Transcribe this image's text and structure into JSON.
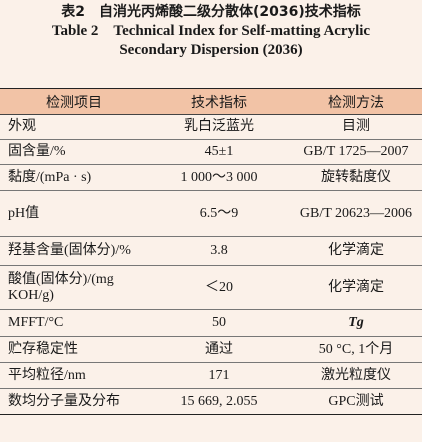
{
  "caption": {
    "cn": "表2　自消光丙烯酸二级分散体(2036)技术指标",
    "en_line1": "Table 2　Technical Index for Self-matting Acrylic",
    "en_line2": "Secondary Dispersion (2036)"
  },
  "table": {
    "headers": [
      "检测项目",
      "技术指标",
      "检测方法"
    ],
    "rows": [
      {
        "item": "外观",
        "spec": "乳白泛蓝光",
        "method": "目测"
      },
      {
        "item": "固含量/%",
        "spec": "45±1",
        "method": "GB/T 1725—2007"
      },
      {
        "item": "黏度/(mPa · s)",
        "spec": "1 000～3 000",
        "method": "旋转黏度仪"
      },
      {
        "item": "pH值",
        "spec": "6.5～9",
        "method": "GB/T 20623—2006"
      },
      {
        "item": "羟基含量(固体分)/%",
        "spec": "3.8",
        "method": "化学滴定"
      },
      {
        "item": "酸值(固体分)/(mg KOH/g)",
        "spec": "＜20",
        "method": "化学滴定"
      },
      {
        "item": "MFFT/°C",
        "spec": "50",
        "method": "Tg"
      },
      {
        "item": "贮存稳定性",
        "spec": "通过",
        "method": "50 °C, 1个月"
      },
      {
        "item": "平均粒径/nm",
        "spec": "171",
        "method": "激光粒度仪"
      },
      {
        "item": "数均分子量及分布",
        "spec": "15 669, 2.055",
        "method": "GPC测试"
      }
    ]
  }
}
